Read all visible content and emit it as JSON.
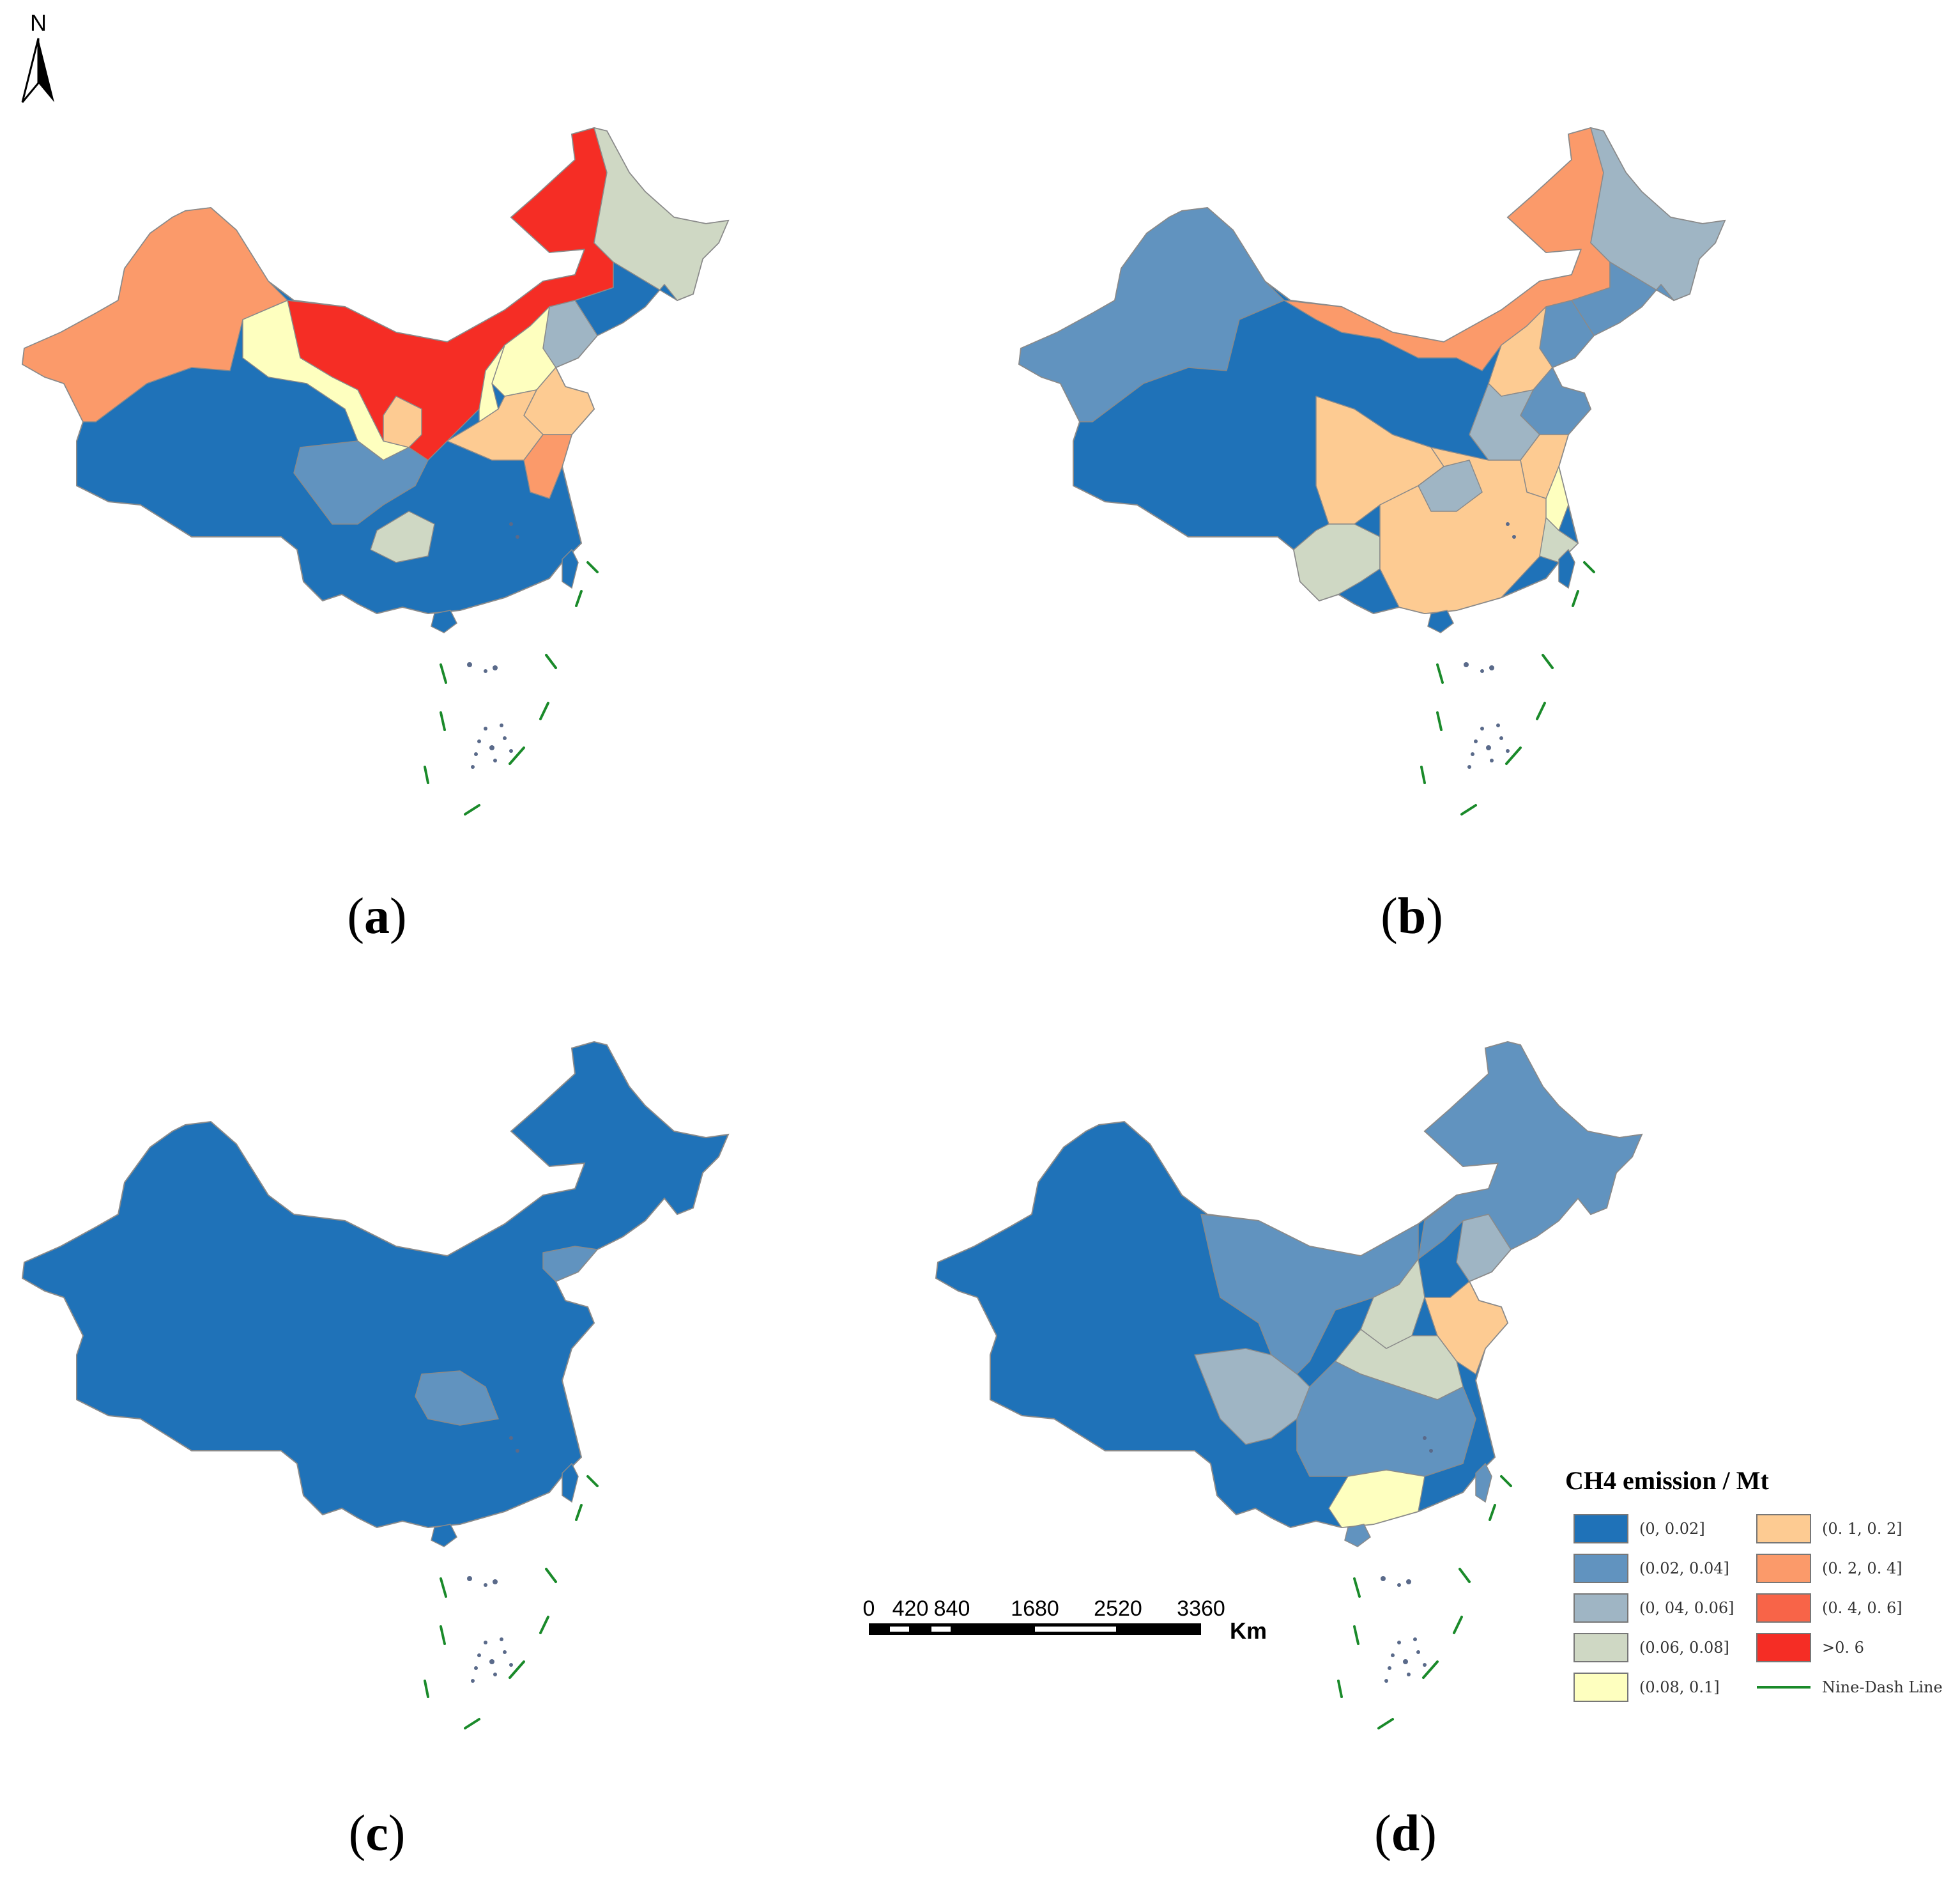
{
  "north_label": "N",
  "panels": [
    {
      "id": "a",
      "label": "a"
    },
    {
      "id": "b",
      "label": "b"
    },
    {
      "id": "c",
      "label": "c"
    },
    {
      "id": "d",
      "label": "d"
    }
  ],
  "legend": {
    "title": "CH4 emission / Mt",
    "items": [
      {
        "label": "(0, 0.02]",
        "color": "#1f72b8"
      },
      {
        "label": "(0.02, 0.04]",
        "color": "#6193bf"
      },
      {
        "label": "(0, 04, 0.06]",
        "color": "#9fb5c4"
      },
      {
        "label": "(0.06, 0.08]",
        "color": "#cfd8c4"
      },
      {
        "label": "(0.08, 0.1]",
        "color": "#feffbf"
      },
      {
        "label": "(0. 1, 0. 2]",
        "color": "#fdcb92"
      },
      {
        "label": "(0. 2, 0. 4]",
        "color": "#fb9a6a"
      },
      {
        "label": "(0. 4, 0. 6]",
        "color": "#f86448"
      },
      {
        "label": ">0. 6",
        "color": "#f52d25"
      }
    ],
    "line_item": {
      "label": "Nine-Dash Line",
      "color": "#1a8a2a"
    }
  },
  "scale_bar": {
    "ticks": [
      "0",
      "420",
      "840",
      "1680",
      "2520",
      "3360"
    ],
    "unit": "Km"
  }
}
